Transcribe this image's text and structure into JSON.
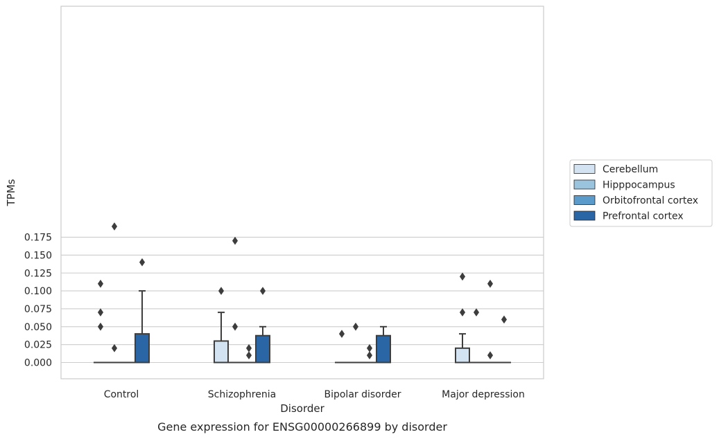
{
  "chart_data": {
    "type": "box",
    "caption": "Gene expression for ENSG00000266899 by disorder",
    "xlabel": "Disorder",
    "ylabel": "TPMs",
    "ylim": [
      -0.009,
      0.197
    ],
    "yticks": [
      0.0,
      0.025,
      0.05,
      0.075,
      0.1,
      0.125,
      0.15,
      0.175
    ],
    "ytick_labels": [
      "0.000",
      "0.025",
      "0.050",
      "0.075",
      "0.100",
      "0.125",
      "0.150",
      "0.175"
    ],
    "grid": "horizontal",
    "legend_position": "right",
    "categories": [
      "Control",
      "Schizophrenia",
      "Bipolar disorder",
      "Major depression"
    ],
    "series": [
      {
        "name": "Cerebellum",
        "color": "#d4e3f1",
        "boxes": [
          {
            "min": 0,
            "q1": 0,
            "median": 0,
            "q3": 0,
            "max": 0,
            "outliers": [
              0.11,
              0.07,
              0.05
            ]
          },
          {
            "min": 0,
            "q1": 0,
            "median": 0,
            "q3": 0.03,
            "max": 0.07,
            "outliers": [
              0.1
            ]
          },
          {
            "min": 0,
            "q1": 0,
            "median": 0,
            "q3": 0,
            "max": 0,
            "outliers": [
              0.04
            ]
          },
          {
            "min": 0,
            "q1": 0,
            "median": 0,
            "q3": 0.02,
            "max": 0.04,
            "outliers": [
              0.12,
              0.07
            ]
          }
        ]
      },
      {
        "name": "Hipppocampus",
        "color": "#9ac3de",
        "boxes": [
          {
            "min": 0,
            "q1": 0,
            "median": 0,
            "q3": 0,
            "max": 0,
            "outliers": [
              0.19,
              0.02
            ]
          },
          {
            "min": 0,
            "q1": 0,
            "median": 0,
            "q3": 0,
            "max": 0,
            "outliers": [
              0.17,
              0.05
            ]
          },
          {
            "min": 0,
            "q1": 0,
            "median": 0,
            "q3": 0,
            "max": 0,
            "outliers": [
              0.05
            ]
          },
          {
            "min": 0,
            "q1": 0,
            "median": 0,
            "q3": 0,
            "max": 0,
            "outliers": [
              0.07
            ]
          }
        ]
      },
      {
        "name": "Orbitofrontal cortex",
        "color": "#5b9bcb",
        "boxes": [
          {
            "min": 0,
            "q1": 0,
            "median": 0,
            "q3": 0,
            "max": 0,
            "outliers": []
          },
          {
            "min": 0,
            "q1": 0,
            "median": 0,
            "q3": 0,
            "max": 0,
            "outliers": [
              0.02,
              0.01
            ]
          },
          {
            "min": 0,
            "q1": 0,
            "median": 0,
            "q3": 0,
            "max": 0,
            "outliers": [
              0.02,
              0.01
            ]
          },
          {
            "min": 0,
            "q1": 0,
            "median": 0,
            "q3": 0,
            "max": 0,
            "outliers": [
              0.11,
              0.01
            ]
          }
        ]
      },
      {
        "name": "Prefrontal cortex",
        "color": "#2a66a5",
        "boxes": [
          {
            "min": 0,
            "q1": 0,
            "median": 0,
            "q3": 0.04,
            "max": 0.1,
            "outliers": [
              0.14
            ]
          },
          {
            "min": 0,
            "q1": 0,
            "median": 0,
            "q3": 0.0375,
            "max": 0.05,
            "outliers": [
              0.1
            ]
          },
          {
            "min": 0,
            "q1": 0,
            "median": 0,
            "q3": 0.0375,
            "max": 0.05,
            "outliers": []
          },
          {
            "min": 0,
            "q1": 0,
            "median": 0,
            "q3": 0,
            "max": 0,
            "outliers": [
              0.06
            ]
          }
        ]
      }
    ]
  }
}
